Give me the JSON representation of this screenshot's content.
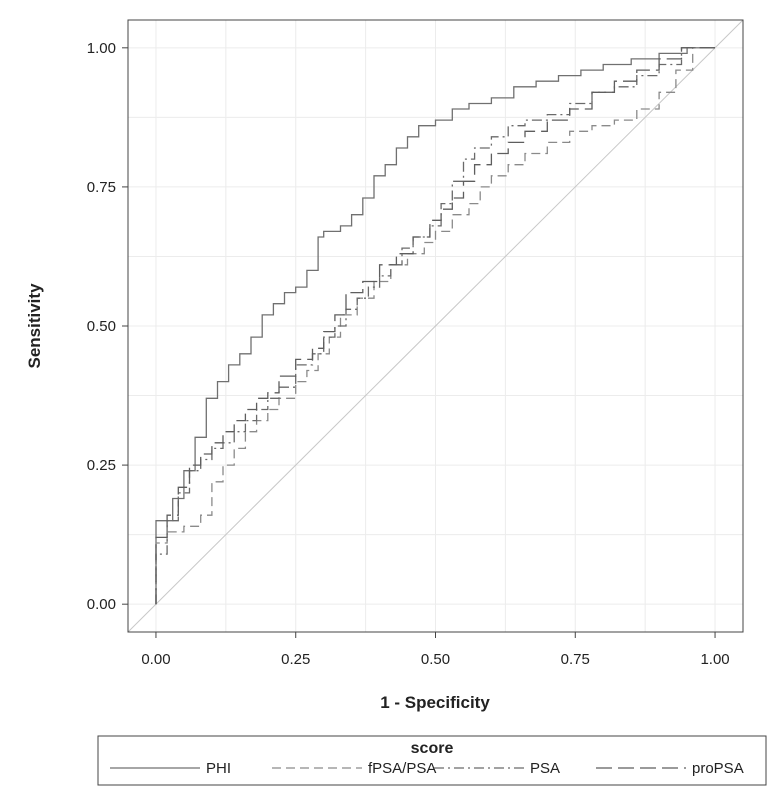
{
  "chart_data": {
    "type": "line",
    "title": "",
    "xlabel": "1 - Specificity",
    "ylabel": "Sensitivity",
    "xlim": [
      -0.05,
      1.05
    ],
    "ylim": [
      -0.05,
      1.05
    ],
    "x_ticks": [
      "0.00",
      "0.25",
      "0.50",
      "0.75",
      "1.00"
    ],
    "y_ticks": [
      "0.00",
      "0.25",
      "0.50",
      "0.75",
      "1.00"
    ],
    "grid": true,
    "legend_title": "score",
    "legend_position": "bottom",
    "reference_line": {
      "x": [
        0,
        1
      ],
      "y": [
        0,
        1
      ],
      "color": "#c8c8c8"
    },
    "series": [
      {
        "name": "PHI",
        "dash": "solid",
        "color": "#707070",
        "points": [
          [
            0,
            0
          ],
          [
            0,
            0.14
          ],
          [
            0.03,
            0.15
          ],
          [
            0.05,
            0.19
          ],
          [
            0.07,
            0.24
          ],
          [
            0.09,
            0.3
          ],
          [
            0.11,
            0.37
          ],
          [
            0.13,
            0.4
          ],
          [
            0.15,
            0.43
          ],
          [
            0.17,
            0.45
          ],
          [
            0.19,
            0.48
          ],
          [
            0.21,
            0.52
          ],
          [
            0.23,
            0.54
          ],
          [
            0.25,
            0.56
          ],
          [
            0.27,
            0.57
          ],
          [
            0.29,
            0.6
          ],
          [
            0.3,
            0.66
          ],
          [
            0.33,
            0.67
          ],
          [
            0.35,
            0.68
          ],
          [
            0.37,
            0.7
          ],
          [
            0.39,
            0.73
          ],
          [
            0.41,
            0.77
          ],
          [
            0.43,
            0.79
          ],
          [
            0.45,
            0.82
          ],
          [
            0.47,
            0.84
          ],
          [
            0.5,
            0.86
          ],
          [
            0.53,
            0.87
          ],
          [
            0.56,
            0.89
          ],
          [
            0.6,
            0.9
          ],
          [
            0.64,
            0.91
          ],
          [
            0.68,
            0.93
          ],
          [
            0.72,
            0.94
          ],
          [
            0.76,
            0.95
          ],
          [
            0.8,
            0.96
          ],
          [
            0.85,
            0.97
          ],
          [
            0.9,
            0.98
          ],
          [
            0.95,
            0.99
          ],
          [
            1,
            1
          ]
        ]
      },
      {
        "name": "fPSA/PSA",
        "dash": "dash",
        "color": "#8a8a8a",
        "points": [
          [
            0,
            0
          ],
          [
            0,
            0.09
          ],
          [
            0.02,
            0.11
          ],
          [
            0.05,
            0.13
          ],
          [
            0.08,
            0.14
          ],
          [
            0.1,
            0.16
          ],
          [
            0.12,
            0.22
          ],
          [
            0.14,
            0.25
          ],
          [
            0.16,
            0.28
          ],
          [
            0.18,
            0.31
          ],
          [
            0.2,
            0.33
          ],
          [
            0.22,
            0.35
          ],
          [
            0.25,
            0.37
          ],
          [
            0.27,
            0.4
          ],
          [
            0.29,
            0.42
          ],
          [
            0.31,
            0.45
          ],
          [
            0.33,
            0.48
          ],
          [
            0.36,
            0.52
          ],
          [
            0.39,
            0.55
          ],
          [
            0.42,
            0.58
          ],
          [
            0.45,
            0.61
          ],
          [
            0.48,
            0.63
          ],
          [
            0.5,
            0.65
          ],
          [
            0.53,
            0.67
          ],
          [
            0.56,
            0.7
          ],
          [
            0.58,
            0.72
          ],
          [
            0.6,
            0.75
          ],
          [
            0.63,
            0.77
          ],
          [
            0.66,
            0.79
          ],
          [
            0.7,
            0.81
          ],
          [
            0.74,
            0.83
          ],
          [
            0.78,
            0.85
          ],
          [
            0.82,
            0.86
          ],
          [
            0.86,
            0.87
          ],
          [
            0.9,
            0.89
          ],
          [
            0.93,
            0.92
          ],
          [
            0.96,
            0.96
          ],
          [
            1,
            1
          ]
        ]
      },
      {
        "name": "PSA",
        "dash": "dashdot",
        "color": "#6a6a6a",
        "points": [
          [
            0,
            0
          ],
          [
            0,
            0.04
          ],
          [
            0.02,
            0.09
          ],
          [
            0.04,
            0.15
          ],
          [
            0.06,
            0.2
          ],
          [
            0.08,
            0.24
          ],
          [
            0.1,
            0.26
          ],
          [
            0.12,
            0.28
          ],
          [
            0.14,
            0.29
          ],
          [
            0.16,
            0.31
          ],
          [
            0.18,
            0.33
          ],
          [
            0.2,
            0.35
          ],
          [
            0.22,
            0.37
          ],
          [
            0.25,
            0.39
          ],
          [
            0.28,
            0.43
          ],
          [
            0.3,
            0.45
          ],
          [
            0.32,
            0.48
          ],
          [
            0.34,
            0.5
          ],
          [
            0.36,
            0.53
          ],
          [
            0.38,
            0.55
          ],
          [
            0.4,
            0.57
          ],
          [
            0.42,
            0.59
          ],
          [
            0.44,
            0.61
          ],
          [
            0.46,
            0.64
          ],
          [
            0.49,
            0.66
          ],
          [
            0.51,
            0.68
          ],
          [
            0.53,
            0.72
          ],
          [
            0.55,
            0.76
          ],
          [
            0.57,
            0.8
          ],
          [
            0.6,
            0.82
          ],
          [
            0.63,
            0.84
          ],
          [
            0.66,
            0.86
          ],
          [
            0.7,
            0.87
          ],
          [
            0.74,
            0.88
          ],
          [
            0.78,
            0.9
          ],
          [
            0.82,
            0.92
          ],
          [
            0.86,
            0.93
          ],
          [
            0.9,
            0.95
          ],
          [
            0.94,
            0.97
          ],
          [
            1,
            1
          ]
        ]
      },
      {
        "name": "proPSA",
        "dash": "longdash",
        "color": "#5e5e5e",
        "points": [
          [
            0,
            0
          ],
          [
            0,
            0.1
          ],
          [
            0.02,
            0.12
          ],
          [
            0.04,
            0.16
          ],
          [
            0.06,
            0.21
          ],
          [
            0.08,
            0.25
          ],
          [
            0.1,
            0.27
          ],
          [
            0.12,
            0.29
          ],
          [
            0.14,
            0.31
          ],
          [
            0.16,
            0.33
          ],
          [
            0.18,
            0.35
          ],
          [
            0.2,
            0.37
          ],
          [
            0.22,
            0.38
          ],
          [
            0.25,
            0.41
          ],
          [
            0.28,
            0.44
          ],
          [
            0.3,
            0.46
          ],
          [
            0.32,
            0.49
          ],
          [
            0.34,
            0.52
          ],
          [
            0.37,
            0.56
          ],
          [
            0.4,
            0.58
          ],
          [
            0.43,
            0.61
          ],
          [
            0.46,
            0.63
          ],
          [
            0.49,
            0.66
          ],
          [
            0.51,
            0.69
          ],
          [
            0.53,
            0.71
          ],
          [
            0.55,
            0.73
          ],
          [
            0.57,
            0.76
          ],
          [
            0.6,
            0.79
          ],
          [
            0.63,
            0.81
          ],
          [
            0.66,
            0.83
          ],
          [
            0.7,
            0.85
          ],
          [
            0.74,
            0.87
          ],
          [
            0.78,
            0.89
          ],
          [
            0.82,
            0.92
          ],
          [
            0.86,
            0.94
          ],
          [
            0.9,
            0.96
          ],
          [
            0.94,
            0.98
          ],
          [
            1,
            1
          ]
        ]
      }
    ]
  }
}
